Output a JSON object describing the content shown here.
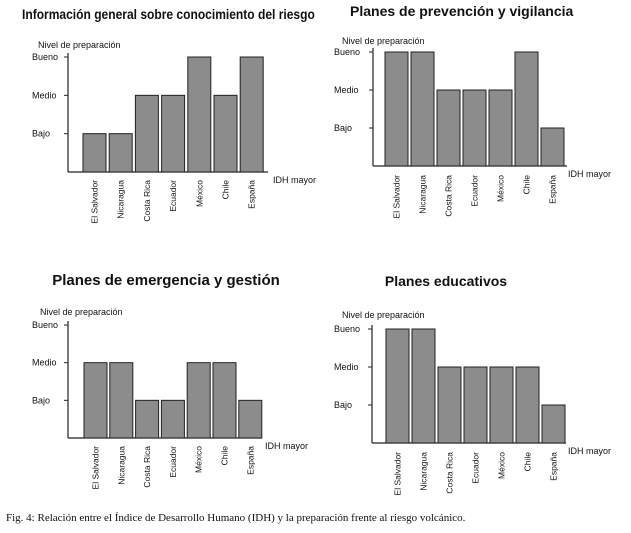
{
  "levels": [
    "Bajo",
    "Medio",
    "Bueno"
  ],
  "ylabel": "Nivel de preparación",
  "xlabel": "IDH mayor",
  "categories": [
    "El Salvador",
    "Nicaragua",
    "Costa Rica",
    "Ecuador",
    "México",
    "Chile",
    "España"
  ],
  "chart_data": [
    {
      "type": "bar",
      "title": "Información general sobre conocimiento del riesgo",
      "ylabel": "Nivel de preparación",
      "xlabel": "IDH mayor",
      "categories": [
        "El Salvador",
        "Nicaragua",
        "Costa Rica",
        "Ecuador",
        "México",
        "Chile",
        "España"
      ],
      "y_levels": [
        "Bajo",
        "Medio",
        "Bueno"
      ],
      "values": [
        1,
        1,
        2,
        2,
        3,
        2,
        3
      ],
      "bar_color": "#8c8c8c"
    },
    {
      "type": "bar",
      "title": "Planes de prevención y vigilancia",
      "ylabel": "Nivel de preparación",
      "xlabel": "IDH mayor",
      "categories": [
        "El Salvador",
        "Nicaragua",
        "Costa Rica",
        "Ecuador",
        "México",
        "Chile",
        "España"
      ],
      "y_levels": [
        "Bajo",
        "Medio",
        "Bueno"
      ],
      "values": [
        3,
        3,
        2,
        2,
        2,
        3,
        1
      ],
      "bar_color": "#8c8c8c"
    },
    {
      "type": "bar",
      "title": "Planes de emergencia y gestión",
      "ylabel": "Nivel de preparación",
      "xlabel": "IDH mayor",
      "categories": [
        "El Salvador",
        "Nicaragua",
        "Costa Rica",
        "Ecuador",
        "México",
        "Chile",
        "España"
      ],
      "y_levels": [
        "Bajo",
        "Medio",
        "Bueno"
      ],
      "values": [
        2,
        2,
        1,
        1,
        2,
        2,
        1
      ],
      "bar_color": "#8c8c8c"
    },
    {
      "type": "bar",
      "title": "Planes educativos",
      "ylabel": "Nivel de preparación",
      "xlabel": "IDH mayor",
      "categories": [
        "El Salvador",
        "Nicaragua",
        "Costa Rica",
        "Ecuador",
        "México",
        "Chile",
        "España"
      ],
      "y_levels": [
        "Bajo",
        "Medio",
        "Bueno"
      ],
      "values": [
        3,
        3,
        2,
        2,
        2,
        2,
        1
      ],
      "bar_color": "#8c8c8c"
    }
  ],
  "caption": "Fig. 4: Relación entre el Índice de Desarrollo Humano (IDH) y la preparación frente al riesgo volcánico."
}
